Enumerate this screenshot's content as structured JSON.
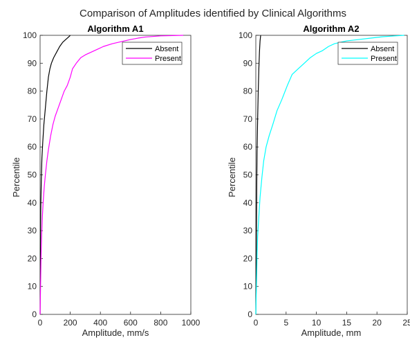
{
  "figure": {
    "suptitle": "Comparison of Amplitudes identified by Clinical Algorithms"
  },
  "chart_data": [
    {
      "type": "line",
      "title": "Algorithm A1",
      "xlabel": "Amplitude, mm/s",
      "ylabel": "Percentile",
      "xlim": [
        0,
        1000
      ],
      "ylim": [
        0,
        100
      ],
      "xticks": [
        "0",
        "200",
        "400",
        "600",
        "800",
        "1000"
      ],
      "yticks": [
        "0",
        "10",
        "20",
        "30",
        "40",
        "50",
        "60",
        "70",
        "80",
        "90",
        "100"
      ],
      "grid": false,
      "legend_position": "top-right",
      "series": [
        {
          "name": "Absent",
          "color": "#000000",
          "x": [
            0,
            1,
            2,
            3,
            5,
            8,
            12,
            18,
            25,
            35,
            45,
            55,
            65,
            75,
            90,
            110,
            130,
            150,
            170,
            185,
            195,
            200
          ],
          "y": [
            0,
            10,
            20,
            30,
            40,
            48,
            56,
            62,
            68,
            74,
            80,
            85,
            88,
            90,
            92,
            94,
            96,
            97.5,
            98.5,
            99.2,
            99.7,
            100
          ]
        },
        {
          "name": "Present",
          "color": "#ff00ff",
          "x": [
            0,
            3,
            6,
            10,
            15,
            20,
            28,
            35,
            45,
            55,
            70,
            85,
            100,
            120,
            140,
            160,
            180,
            200,
            215,
            240,
            270,
            300,
            340,
            380,
            420,
            480,
            520,
            560,
            600,
            650,
            700,
            800,
            950
          ],
          "y": [
            0,
            10,
            20,
            28,
            35,
            40,
            46,
            50,
            55,
            59,
            64,
            68,
            71,
            74,
            77,
            80,
            82,
            85,
            88,
            90,
            92,
            93,
            94,
            95,
            96,
            97,
            97.5,
            98,
            98.5,
            99,
            99.4,
            99.8,
            100
          ]
        }
      ]
    },
    {
      "type": "line",
      "title": "Algorithm A2",
      "xlabel": "Amplitude, mm",
      "ylabel": "Percentile",
      "xlim": [
        0,
        25
      ],
      "ylim": [
        0,
        100
      ],
      "xticks": [
        "0",
        "5",
        "10",
        "15",
        "20",
        "25"
      ],
      "yticks": [
        "0",
        "10",
        "20",
        "30",
        "40",
        "50",
        "60",
        "70",
        "80",
        "90",
        "100"
      ],
      "grid": false,
      "legend_position": "top-right",
      "series": [
        {
          "name": "Absent",
          "color": "#000000",
          "x": [
            0,
            0.05,
            0.1,
            0.15,
            0.2,
            0.3,
            0.4,
            0.5,
            0.6,
            0.7,
            0.8
          ],
          "y": [
            0,
            15,
            30,
            45,
            58,
            70,
            80,
            88,
            94,
            98,
            100
          ]
        },
        {
          "name": "Present",
          "color": "#00ffff",
          "x": [
            0,
            0.1,
            0.2,
            0.3,
            0.5,
            0.7,
            1.0,
            1.3,
            1.7,
            2.2,
            2.8,
            3.5,
            4.3,
            5.2,
            6.0,
            7.0,
            8.0,
            9.0,
            10.0,
            11.0,
            12.0,
            13.0,
            15.0,
            17.0,
            19.0,
            21.0,
            23.0,
            24.5
          ],
          "y": [
            0,
            10,
            20,
            28,
            35,
            42,
            49,
            55,
            60,
            64,
            68,
            73,
            77,
            82,
            86,
            88,
            90,
            92,
            93.5,
            94.5,
            96,
            97,
            98,
            98.5,
            99,
            99.5,
            99.8,
            100
          ]
        }
      ]
    }
  ]
}
